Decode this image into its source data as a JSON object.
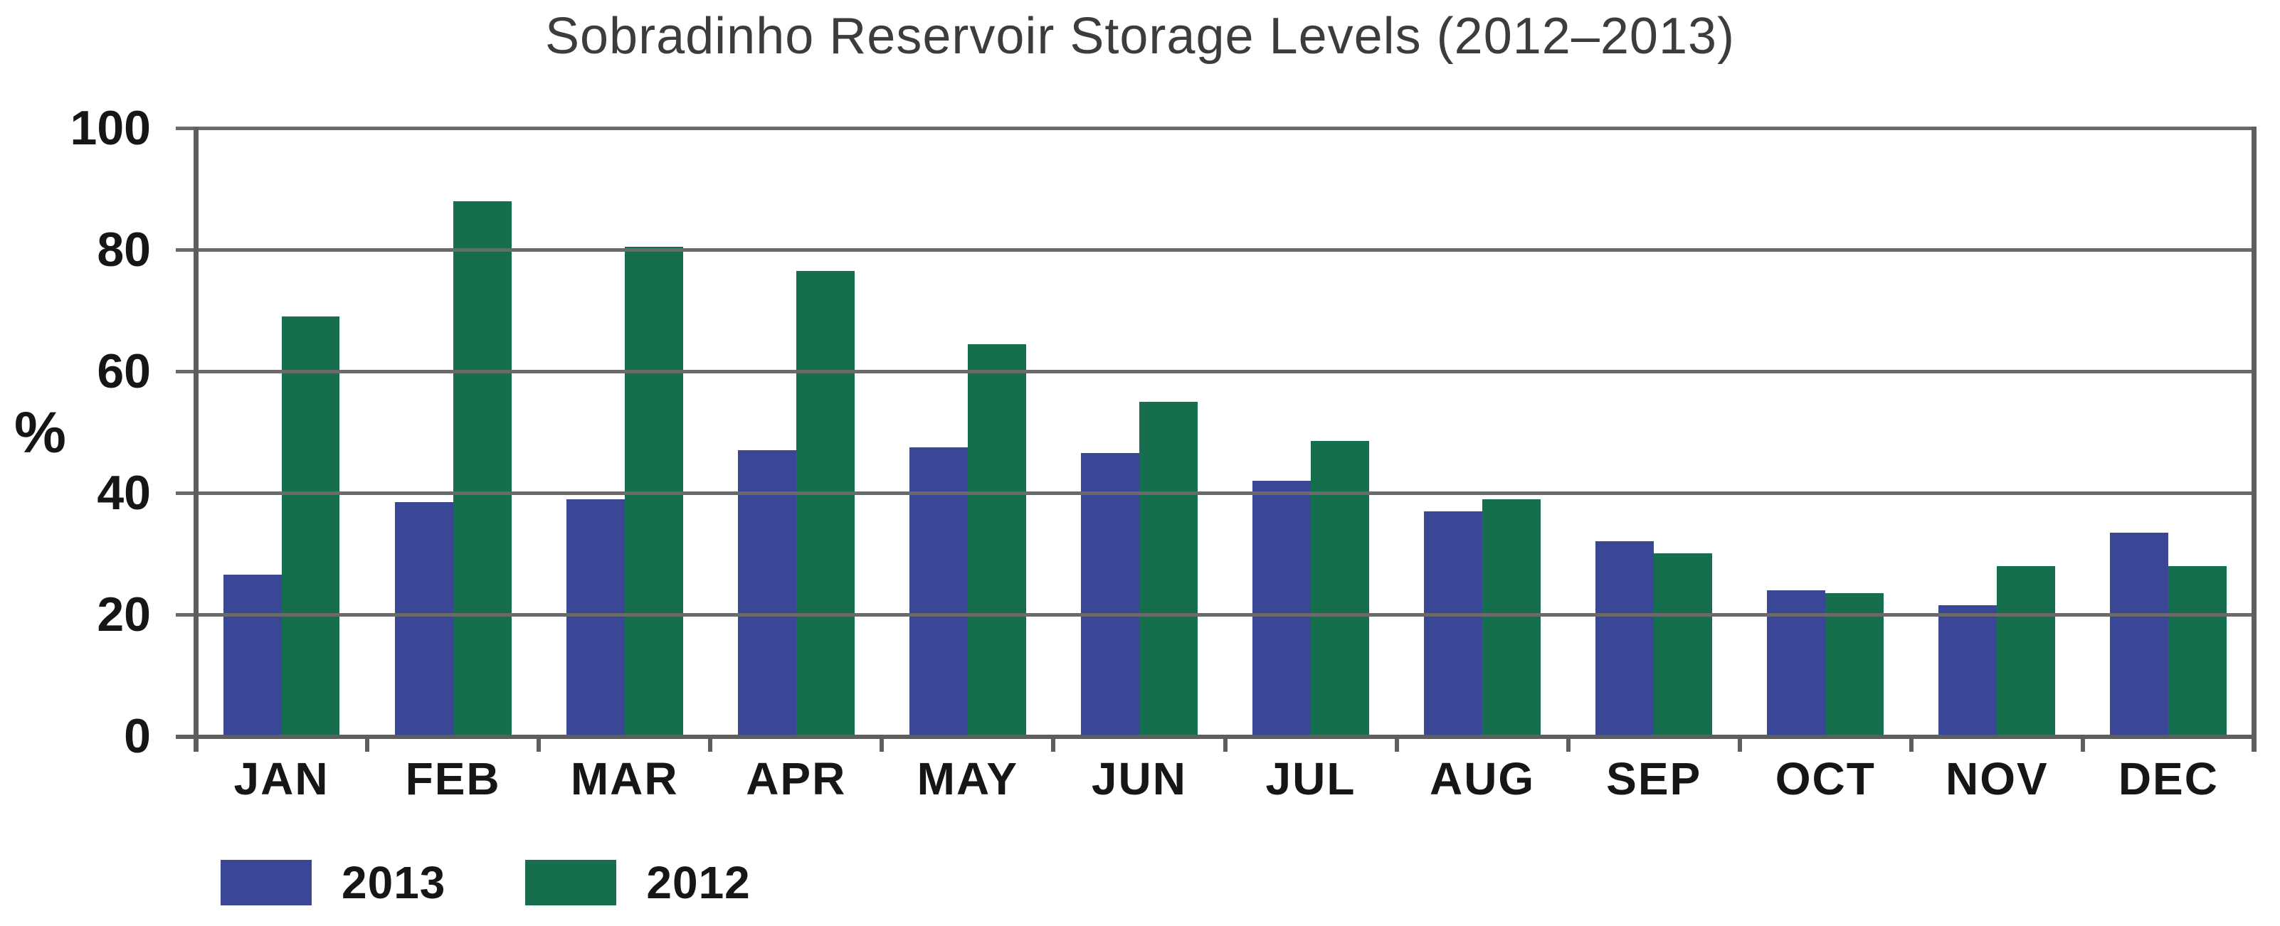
{
  "title": "Sobradinho Reservoir Storage Levels (2012–2013)",
  "y_axis": {
    "unit_label": "%",
    "tick_labels": [
      "100",
      "80",
      "60",
      "40",
      "20",
      "0"
    ],
    "tick_values": [
      100,
      80,
      60,
      40,
      20,
      0
    ]
  },
  "legend": {
    "items": [
      {
        "label": "2013",
        "color": "#3A4796"
      },
      {
        "label": "2012",
        "color": "#166F4C"
      }
    ]
  },
  "colors": {
    "bar_2013": "#3A4796",
    "bar_2012": "#166F4C",
    "gridline": "#6a6a6a",
    "axis": "#5e5e5e",
    "title_text": "#3c3c3c",
    "label_text": "#161616",
    "background": "#ffffff"
  },
  "chart_data": {
    "type": "bar",
    "title": "Sobradinho Reservoir Storage Levels (2012–2013)",
    "categories": [
      "JAN",
      "FEB",
      "MAR",
      "APR",
      "MAY",
      "JUN",
      "JUL",
      "AUG",
      "SEP",
      "OCT",
      "NOV",
      "DEC"
    ],
    "series": [
      {
        "name": "2013",
        "color": "#3A4796",
        "values": [
          26.5,
          38.5,
          39,
          47,
          47.5,
          46.5,
          42,
          37,
          32,
          24,
          21.5,
          33.5
        ]
      },
      {
        "name": "2012",
        "color": "#166F4C",
        "values": [
          69,
          88,
          80.5,
          76.5,
          64.5,
          55,
          48.5,
          39,
          30,
          23.5,
          28,
          28
        ]
      }
    ],
    "xlabel": "",
    "ylabel": "%",
    "ylim": [
      0,
      100
    ],
    "grid": true,
    "gridlines_over_bars": true,
    "legend_position": "bottom-left"
  }
}
